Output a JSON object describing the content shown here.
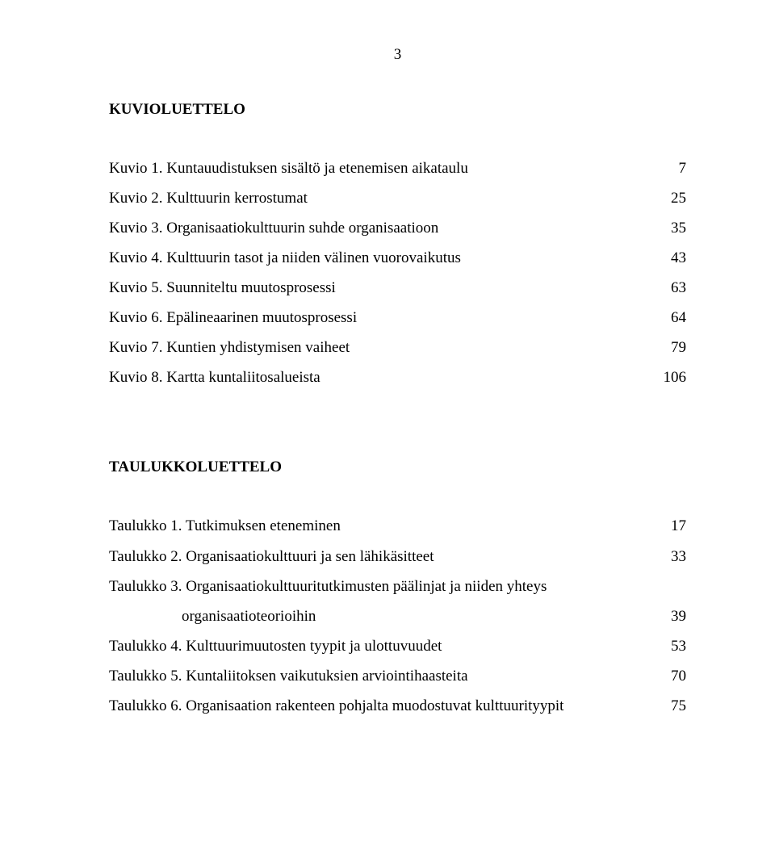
{
  "page_number": "3",
  "sections": [
    {
      "heading": "KUVIOLUETTELO",
      "entries": [
        {
          "label": "Kuvio 1. Kuntauudistuksen sisältö ja etenemisen aikataulu",
          "page": "7"
        },
        {
          "label": "Kuvio 2. Kulttuurin kerrostumat",
          "page": "25"
        },
        {
          "label": "Kuvio 3. Organisaatiokulttuurin suhde organisaatioon",
          "page": "35"
        },
        {
          "label": "Kuvio 4. Kulttuurin tasot ja niiden välinen vuorovaikutus",
          "page": "43"
        },
        {
          "label": "Kuvio 5. Suunniteltu muutosprosessi",
          "page": "63"
        },
        {
          "label": "Kuvio 6. Epälineaarinen muutosprosessi",
          "page": "64"
        },
        {
          "label": "Kuvio 7. Kuntien yhdistymisen vaiheet",
          "page": "79"
        },
        {
          "label": "Kuvio 8. Kartta kuntaliitosalueista",
          "page": "106"
        }
      ]
    },
    {
      "heading": "TAULUKKOLUETTELO",
      "entries": [
        {
          "label": "Taulukko 1. Tutkimuksen eteneminen",
          "page": "17"
        },
        {
          "label": "Taulukko 2. Organisaatiokulttuuri ja sen lähikäsitteet",
          "page": "33"
        },
        {
          "label_line1": "Taulukko 3. Organisaatiokulttuuritutkimusten päälinjat ja niiden yhteys",
          "label_line2": "organisaatioteorioihin",
          "page": "39",
          "wrapped": true
        },
        {
          "label": "Taulukko 4. Kulttuurimuutosten tyypit ja ulottuvuudet",
          "page": "53"
        },
        {
          "label": "Taulukko 5. Kuntaliitoksen vaikutuksien arviointihaasteita",
          "page": "70"
        },
        {
          "label": "Taulukko 6. Organisaation rakenteen pohjalta muodostuvat kulttuurityypit",
          "page": "75"
        }
      ]
    }
  ]
}
